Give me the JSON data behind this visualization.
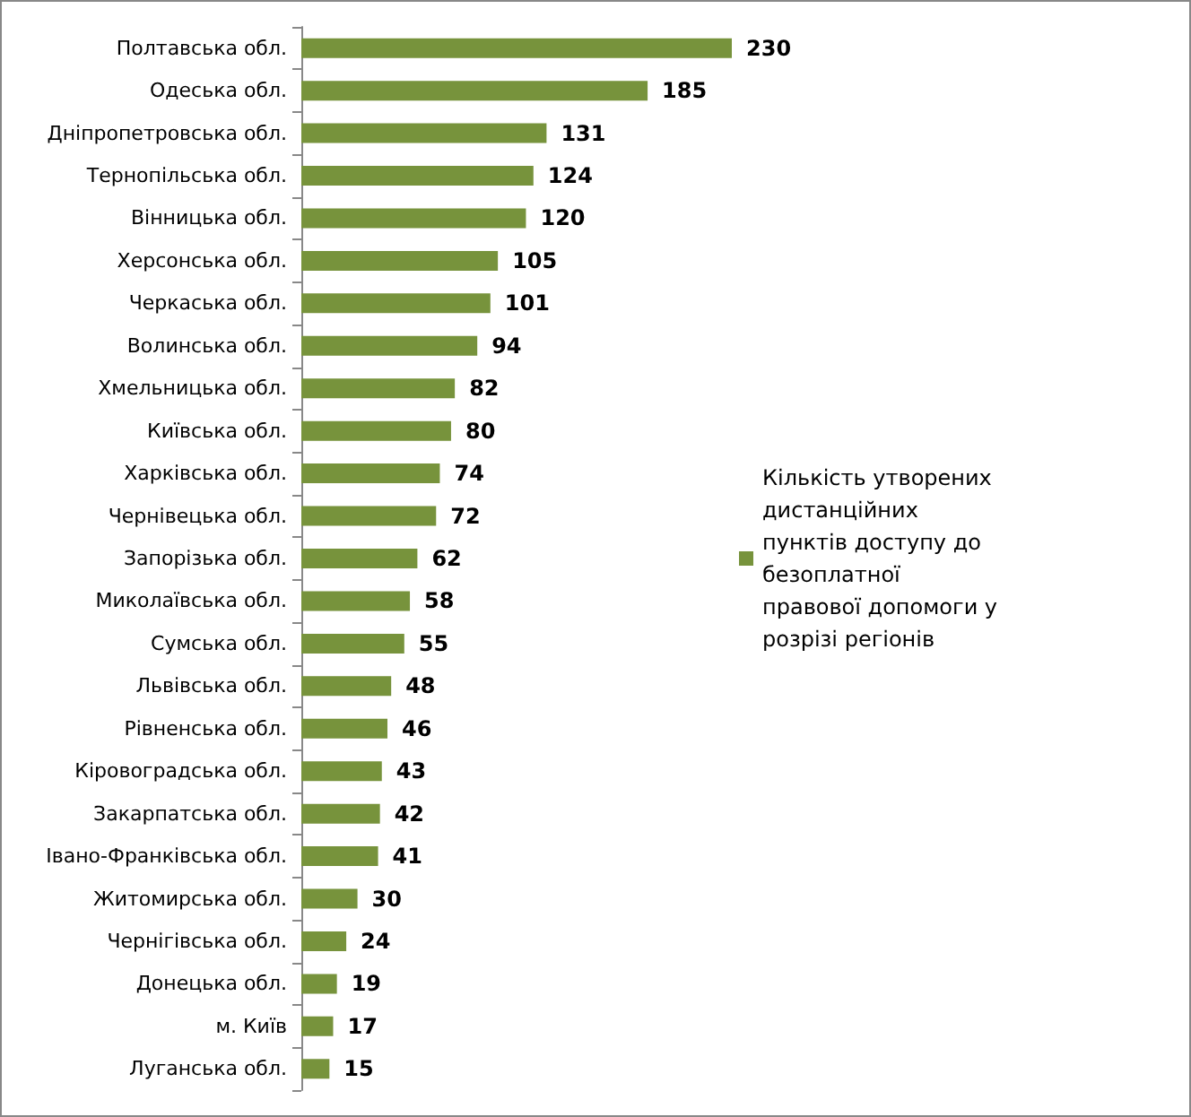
{
  "chart_data": {
    "type": "bar",
    "orientation": "horizontal",
    "data_labels": true,
    "legend": "right",
    "grid": false,
    "categories": [
      "Полтавська обл.",
      "Одеська обл.",
      "Дніпропетровська обл.",
      "Тернопільська обл.",
      "Вінницька обл.",
      "Херсонська обл.",
      "Черкаська обл.",
      "Волинська обл.",
      "Хмельницька обл.",
      "Київська обл.",
      "Харківська обл.",
      "Чернівецька обл.",
      "Запорізька обл.",
      "Миколаївська обл.",
      "Сумська обл.",
      "Львівська обл.",
      "Рівненська обл.",
      "Кіровоградська обл.",
      "Закарпатська обл.",
      "Івано-Франківська обл.",
      "Житомирська обл.",
      "Чернігівська обл.",
      "Донецька обл.",
      "м. Київ",
      "Луганська обл."
    ],
    "series": [
      {
        "name": "Кількість утворених дистанційних пунктів доступу до безоплатної правової допомоги у розрізі регіонів",
        "color": "#77933c",
        "values": [
          230,
          185,
          131,
          124,
          120,
          105,
          101,
          94,
          82,
          80,
          74,
          72,
          62,
          58,
          55,
          48,
          46,
          43,
          42,
          41,
          30,
          24,
          19,
          17,
          15
        ]
      }
    ]
  }
}
